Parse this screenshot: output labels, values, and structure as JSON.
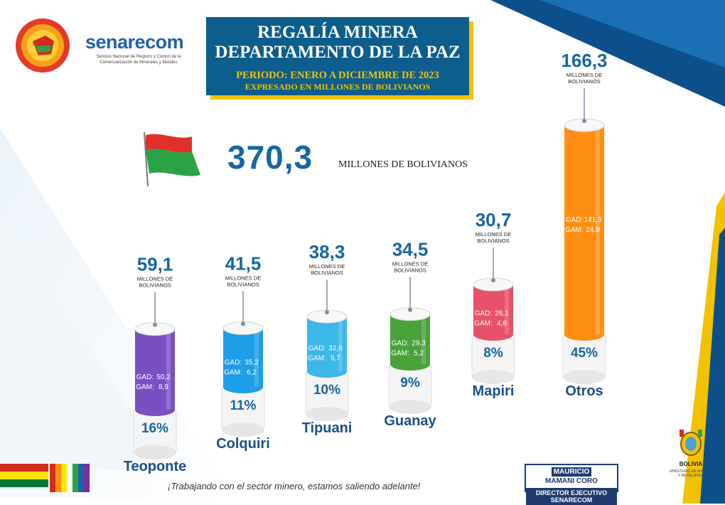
{
  "header": {
    "logo_name": "senarecom",
    "logo_subtitle": "Servicio Nacional de Registro y Control de la Comercialización de Minerales y Metales",
    "title_line1": "REGALÍA MINERA",
    "title_line2": "DEPARTAMENTO DE LA PAZ",
    "period": "PERIODO: ENERO A DICIEMBRE DE 2023",
    "units_note": "EXPRESADO EN MILLONES DE BOLIVIANOS"
  },
  "total": {
    "value": "370,3",
    "unit": "MILLONES DE BOLIVIANOS"
  },
  "chart_data": {
    "type": "bar",
    "categories": [
      "Teoponte",
      "Colquiri",
      "Tipuani",
      "Guanay",
      "Mapiri",
      "Otros"
    ],
    "values": [
      59.1,
      41.5,
      38.3,
      34.5,
      30.7,
      166.3
    ],
    "value_labels": [
      "59,1",
      "41,5",
      "38,3",
      "34,5",
      "30,7",
      "166,3"
    ],
    "unit_label": "MILLONES DE BOLIVIANOS",
    "percentages": [
      "16%",
      "11%",
      "10%",
      "9%",
      "8%",
      "45%"
    ],
    "gad_label": "GAD:",
    "gam_label": "GAM:",
    "gad_labels": [
      "50,2",
      "35,2",
      "32,6",
      "29,3",
      "26,1",
      "141,3"
    ],
    "gam_labels": [
      "8,9",
      "6,2",
      "5,7",
      "5,2",
      "4,6",
      "24,9"
    ],
    "colors": [
      "#7a4fc4",
      "#1e9ee6",
      "#3bb7e8",
      "#4aa33a",
      "#e8516a",
      "#ff8f14"
    ]
  },
  "footer": {
    "slogan": "¡Trabajando con el sector minero,  estamos saliendo adelante!",
    "signature_first": "MAURICIO",
    "signature_last": "MAMANI CORO",
    "signature_role": "DIRECTOR EJECUTIVO SENARECOM",
    "country": "BOLIVIA",
    "ministry": "MINISTERIO DE MINERÍA Y METALURGIA"
  },
  "colors": {
    "brand_blue": "#0d5e8c",
    "accent_yellow": "#f2c200",
    "value_blue": "#1766a3"
  }
}
